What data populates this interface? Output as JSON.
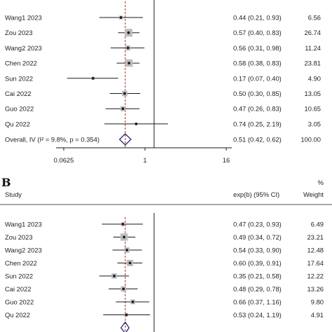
{
  "chart_data": [
    {
      "type": "forest",
      "panel_label": "",
      "study_header": "",
      "effect_header": "",
      "weight_header_top": "",
      "weight_header": "",
      "x_scale": "log",
      "null_line": 1,
      "ticks": [
        "0.0625",
        "1",
        "16"
      ],
      "studies": [
        {
          "name": "Wang1 2023",
          "est": 0.44,
          "lo": 0.21,
          "hi": 0.93,
          "ci_text": "0.44 (0.21, 0.93)",
          "weight": "6.56"
        },
        {
          "name": "Zou 2023",
          "est": 0.57,
          "lo": 0.4,
          "hi": 0.83,
          "ci_text": "0.57 (0.40, 0.83)",
          "weight": "26.74"
        },
        {
          "name": "Wang2 2023",
          "est": 0.56,
          "lo": 0.31,
          "hi": 0.98,
          "ci_text": "0.56 (0.31, 0.98)",
          "weight": "11.24"
        },
        {
          "name": "Chen 2022",
          "est": 0.58,
          "lo": 0.38,
          "hi": 0.83,
          "ci_text": "0.58 (0.38, 0.83)",
          "weight": "23.81"
        },
        {
          "name": "Sun 2022",
          "est": 0.17,
          "lo": 0.07,
          "hi": 0.4,
          "ci_text": "0.17 (0.07, 0.40)",
          "weight": "4.90"
        },
        {
          "name": "Cai 2022",
          "est": 0.5,
          "lo": 0.3,
          "hi": 0.85,
          "ci_text": "0.50 (0.30, 0.85)",
          "weight": "13.05"
        },
        {
          "name": "Guo 2022",
          "est": 0.47,
          "lo": 0.26,
          "hi": 0.83,
          "ci_text": "0.47 (0.26, 0.83)",
          "weight": "10.65"
        },
        {
          "name": "Qu 2022",
          "est": 0.74,
          "lo": 0.25,
          "hi": 2.19,
          "ci_text": "0.74 (0.25, 2.19)",
          "weight": "3.05"
        }
      ],
      "overall": {
        "label": "Overall, IV (I² = 9.8%, p = 0.354)",
        "est": 0.51,
        "lo": 0.42,
        "hi": 0.62,
        "ci_text": "0.51 (0.42, 0.62)",
        "weight": "100.00"
      }
    },
    {
      "type": "forest",
      "panel_label": "B",
      "study_header": "Study",
      "effect_header": "exp(b) (95% CI)",
      "weight_header_top": "%",
      "weight_header": "Weight",
      "x_scale": "log",
      "null_line": 1,
      "ticks": [],
      "studies": [
        {
          "name": "Wang1 2023",
          "est": 0.47,
          "lo": 0.23,
          "hi": 0.93,
          "ci_text": "0.47 (0.23, 0.93)",
          "weight": "6.49"
        },
        {
          "name": "Zou 2023",
          "est": 0.49,
          "lo": 0.34,
          "hi": 0.72,
          "ci_text": "0.49 (0.34, 0.72)",
          "weight": "23.21"
        },
        {
          "name": "Wang2 2023",
          "est": 0.54,
          "lo": 0.33,
          "hi": 0.9,
          "ci_text": "0.54 (0.33, 0.90)",
          "weight": "12.48"
        },
        {
          "name": "Chen 2022",
          "est": 0.6,
          "lo": 0.39,
          "hi": 0.91,
          "ci_text": "0.60 (0.39, 0.91)",
          "weight": "17.64"
        },
        {
          "name": "Sun 2022",
          "est": 0.35,
          "lo": 0.21,
          "hi": 0.58,
          "ci_text": "0.35 (0.21, 0.58)",
          "weight": "12.22"
        },
        {
          "name": "Cai 2022",
          "est": 0.48,
          "lo": 0.29,
          "hi": 0.78,
          "ci_text": "0.48 (0.29, 0.78)",
          "weight": "13.26"
        },
        {
          "name": "Guo 2022",
          "est": 0.66,
          "lo": 0.37,
          "hi": 1.16,
          "ci_text": "0.66 (0.37, 1.16)",
          "weight": "9.80"
        },
        {
          "name": "Qu 2022",
          "est": 0.53,
          "lo": 0.24,
          "hi": 1.19,
          "ci_text": "0.53 (0.24, 1.19)",
          "weight": "4.91"
        }
      ],
      "overall": {
        "label": "",
        "est": 0.51,
        "lo": 0.44,
        "hi": 0.58,
        "ci_text": "",
        "weight": ""
      }
    }
  ],
  "colors": {
    "ink": "#1a1a1a",
    "box": "#bdbdbd",
    "diamond": "#1f2b7a",
    "ref": "#b22222"
  }
}
